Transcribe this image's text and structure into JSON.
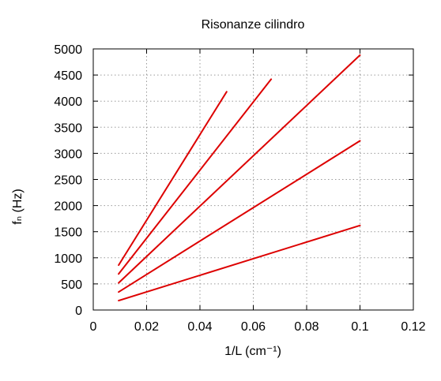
{
  "chart_data": {
    "type": "line",
    "title": "Risonanze cilindro",
    "xlabel": "1/L (cm⁻¹)",
    "ylabel": "fₙ (Hz)",
    "xlim": [
      0,
      0.12
    ],
    "ylim": [
      0,
      5000
    ],
    "xticks": [
      "0",
      "0.02",
      "0.04",
      "0.06",
      "0.08",
      "0.1",
      "0.12"
    ],
    "yticks": [
      "0",
      "500",
      "1000",
      "1500",
      "2000",
      "2500",
      "3000",
      "3500",
      "4000",
      "4500",
      "5000"
    ],
    "grid": true,
    "line_color": "#dd0000",
    "series": [
      {
        "x": [
          0.0095,
          0.1
        ],
        "y": [
          180,
          1620
        ]
      },
      {
        "x": [
          0.0095,
          0.1
        ],
        "y": [
          345,
          3240
        ]
      },
      {
        "x": [
          0.0095,
          0.1
        ],
        "y": [
          520,
          4880
        ]
      },
      {
        "x": [
          0.0095,
          0.0667
        ],
        "y": [
          690,
          4420
        ]
      },
      {
        "x": [
          0.0095,
          0.05
        ],
        "y": [
          860,
          4180
        ]
      }
    ]
  }
}
